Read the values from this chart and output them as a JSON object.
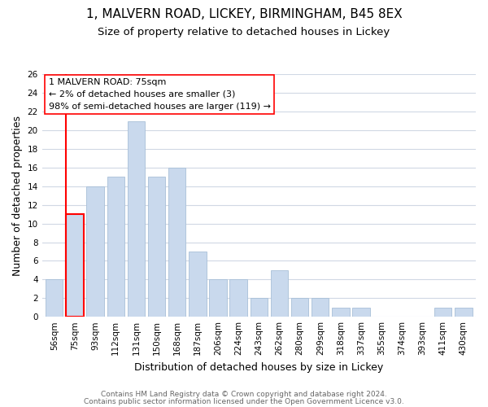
{
  "title": "1, MALVERN ROAD, LICKEY, BIRMINGHAM, B45 8EX",
  "subtitle": "Size of property relative to detached houses in Lickey",
  "xlabel": "Distribution of detached houses by size in Lickey",
  "ylabel": "Number of detached properties",
  "bar_labels": [
    "56sqm",
    "75sqm",
    "93sqm",
    "112sqm",
    "131sqm",
    "150sqm",
    "168sqm",
    "187sqm",
    "206sqm",
    "224sqm",
    "243sqm",
    "262sqm",
    "280sqm",
    "299sqm",
    "318sqm",
    "337sqm",
    "355sqm",
    "374sqm",
    "393sqm",
    "411sqm",
    "430sqm"
  ],
  "bar_values": [
    4,
    11,
    14,
    15,
    21,
    15,
    16,
    7,
    4,
    4,
    2,
    5,
    2,
    2,
    1,
    1,
    0,
    0,
    0,
    1,
    1
  ],
  "highlight_index": 1,
  "bar_color": "#c9d9ed",
  "highlight_border_color": "#ff0000",
  "bar_edge_color": "#a8bfd8",
  "ylim": [
    0,
    26
  ],
  "yticks": [
    0,
    2,
    4,
    6,
    8,
    10,
    12,
    14,
    16,
    18,
    20,
    22,
    24,
    26
  ],
  "annotation_box_text": "1 MALVERN ROAD: 75sqm\n← 2% of detached houses are smaller (3)\n98% of semi-detached houses are larger (119) →",
  "footer_line1": "Contains HM Land Registry data © Crown copyright and database right 2024.",
  "footer_line2": "Contains public sector information licensed under the Open Government Licence v3.0.",
  "background_color": "#ffffff",
  "grid_color": "#d0d8e4",
  "title_fontsize": 11,
  "subtitle_fontsize": 9.5,
  "axis_label_fontsize": 9,
  "tick_fontsize": 7.5,
  "annotation_fontsize": 8,
  "footer_fontsize": 6.5
}
